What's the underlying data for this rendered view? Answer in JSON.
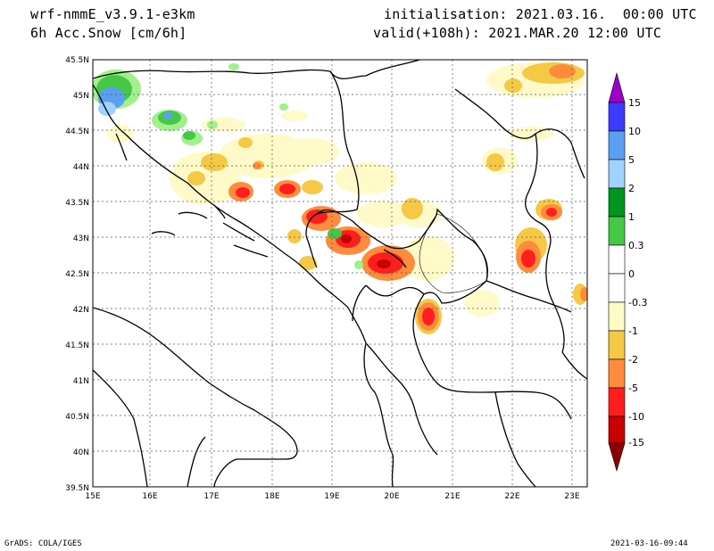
{
  "header": {
    "model": "wrf-nmmE_v3.9.1-e3km",
    "field": "6h Acc.Snow [cm/6h]",
    "init": "initialisation: 2021.03.16.  00:00 UTC",
    "valid": "valid(+108h): 2021.MAR.20 12:00 UTC"
  },
  "footer": {
    "credit": "GrADS: COLA/IGES",
    "timestamp": "2021-03-16-09:44"
  },
  "map": {
    "lon_labels": [
      "15E",
      "16E",
      "17E",
      "18E",
      "19E",
      "20E",
      "21E",
      "22E",
      "23E"
    ],
    "lat_labels": [
      "39.5N",
      "40N",
      "40.5N",
      "41N",
      "41.5N",
      "42N",
      "42.5N",
      "43N",
      "43.5N",
      "44N",
      "44.5N",
      "45N",
      "45.5N"
    ],
    "lon_range": [
      15,
      23.3
    ],
    "lat_range": [
      39.5,
      45.5
    ]
  },
  "colorbar": {
    "levels": [
      "15",
      "10",
      "5",
      "2",
      "1",
      "0.3",
      "0",
      "-0.3",
      "-1",
      "-2",
      "-5",
      "-10",
      "-15"
    ],
    "colors": [
      "#a000c8",
      "#3c3cff",
      "#5aa0f0",
      "#a0d2ff",
      "#00961e",
      "#46c846",
      "#a0f08c",
      "#ffffff",
      "#fffac8",
      "#f5c846",
      "#ff8c3c",
      "#ff1e1e",
      "#c80000",
      "#8c0000"
    ]
  },
  "snow_patches_colors": {
    "light": "#fffac8",
    "yellow": "#f5c846",
    "orange": "#ff8c3c",
    "red": "#ff1e1e",
    "darkred": "#c80000",
    "lightgreen": "#a0f08c",
    "green": "#46c846",
    "darkgreen": "#00961e",
    "lightblue": "#a0d2ff",
    "blue": "#5aa0f0"
  }
}
